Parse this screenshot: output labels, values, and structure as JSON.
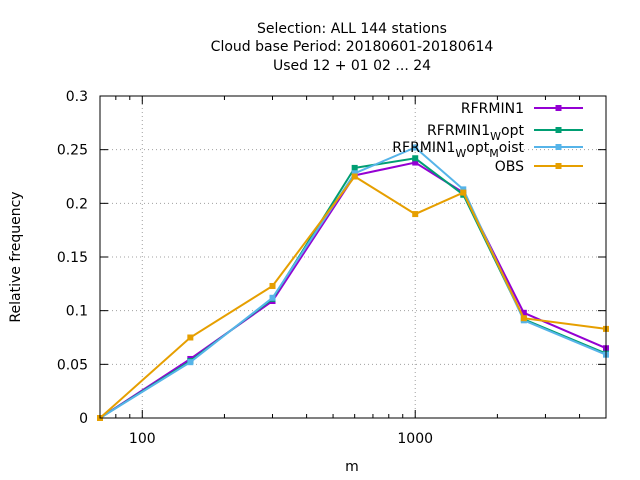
{
  "chart_data": {
    "type": "line",
    "title_lines": [
      "Selection: ALL    144 stations",
      "Cloud base  Period: 20180601-20180614",
      "Used  12 + 01 02 ... 24"
    ],
    "xlabel": "m",
    "ylabel": "Relative frequency",
    "xscale": "log",
    "xlim": [
      70,
      5000
    ],
    "ylim": [
      0,
      0.3
    ],
    "xticks": [
      100,
      1000
    ],
    "xtick_labels": [
      "100",
      "1000"
    ],
    "yticks": [
      0,
      0.05,
      0.1,
      0.15,
      0.2,
      0.25,
      0.3
    ],
    "ytick_labels": [
      "0",
      "0.05",
      "0.1",
      "0.15",
      "0.2",
      "0.25",
      "0.3"
    ],
    "grid": true,
    "legend_position": "top-right",
    "x": [
      70,
      150,
      300,
      600,
      1000,
      1500,
      2500,
      5000
    ],
    "series": [
      {
        "name": "RFRMIN1",
        "legend_main": "RFRMIN1",
        "legend_subs": [],
        "color": "#9400d3",
        "values": [
          0,
          0.055,
          0.109,
          0.226,
          0.238,
          0.21,
          0.098,
          0.065
        ]
      },
      {
        "name": "RFRMIN1_Wopt",
        "legend_main": "RFRMIN1",
        "legend_subs": [
          [
            "W",
            "opt"
          ]
        ],
        "color": "#009e73",
        "values": [
          0,
          0.053,
          0.111,
          0.233,
          0.242,
          0.208,
          0.092,
          0.06
        ]
      },
      {
        "name": "RFRMIN1_Wopt_Moist",
        "legend_main": "RFRMIN1",
        "legend_subs": [
          [
            "W",
            "opt"
          ],
          [
            "M",
            "oist"
          ]
        ],
        "color": "#56b4e9",
        "values": [
          0,
          0.052,
          0.112,
          0.228,
          0.252,
          0.213,
          0.091,
          0.059
        ]
      },
      {
        "name": "OBS",
        "legend_main": "OBS",
        "legend_subs": [],
        "color": "#e69f00",
        "values": [
          0,
          0.075,
          0.123,
          0.225,
          0.19,
          0.21,
          0.093,
          0.083
        ]
      }
    ]
  }
}
